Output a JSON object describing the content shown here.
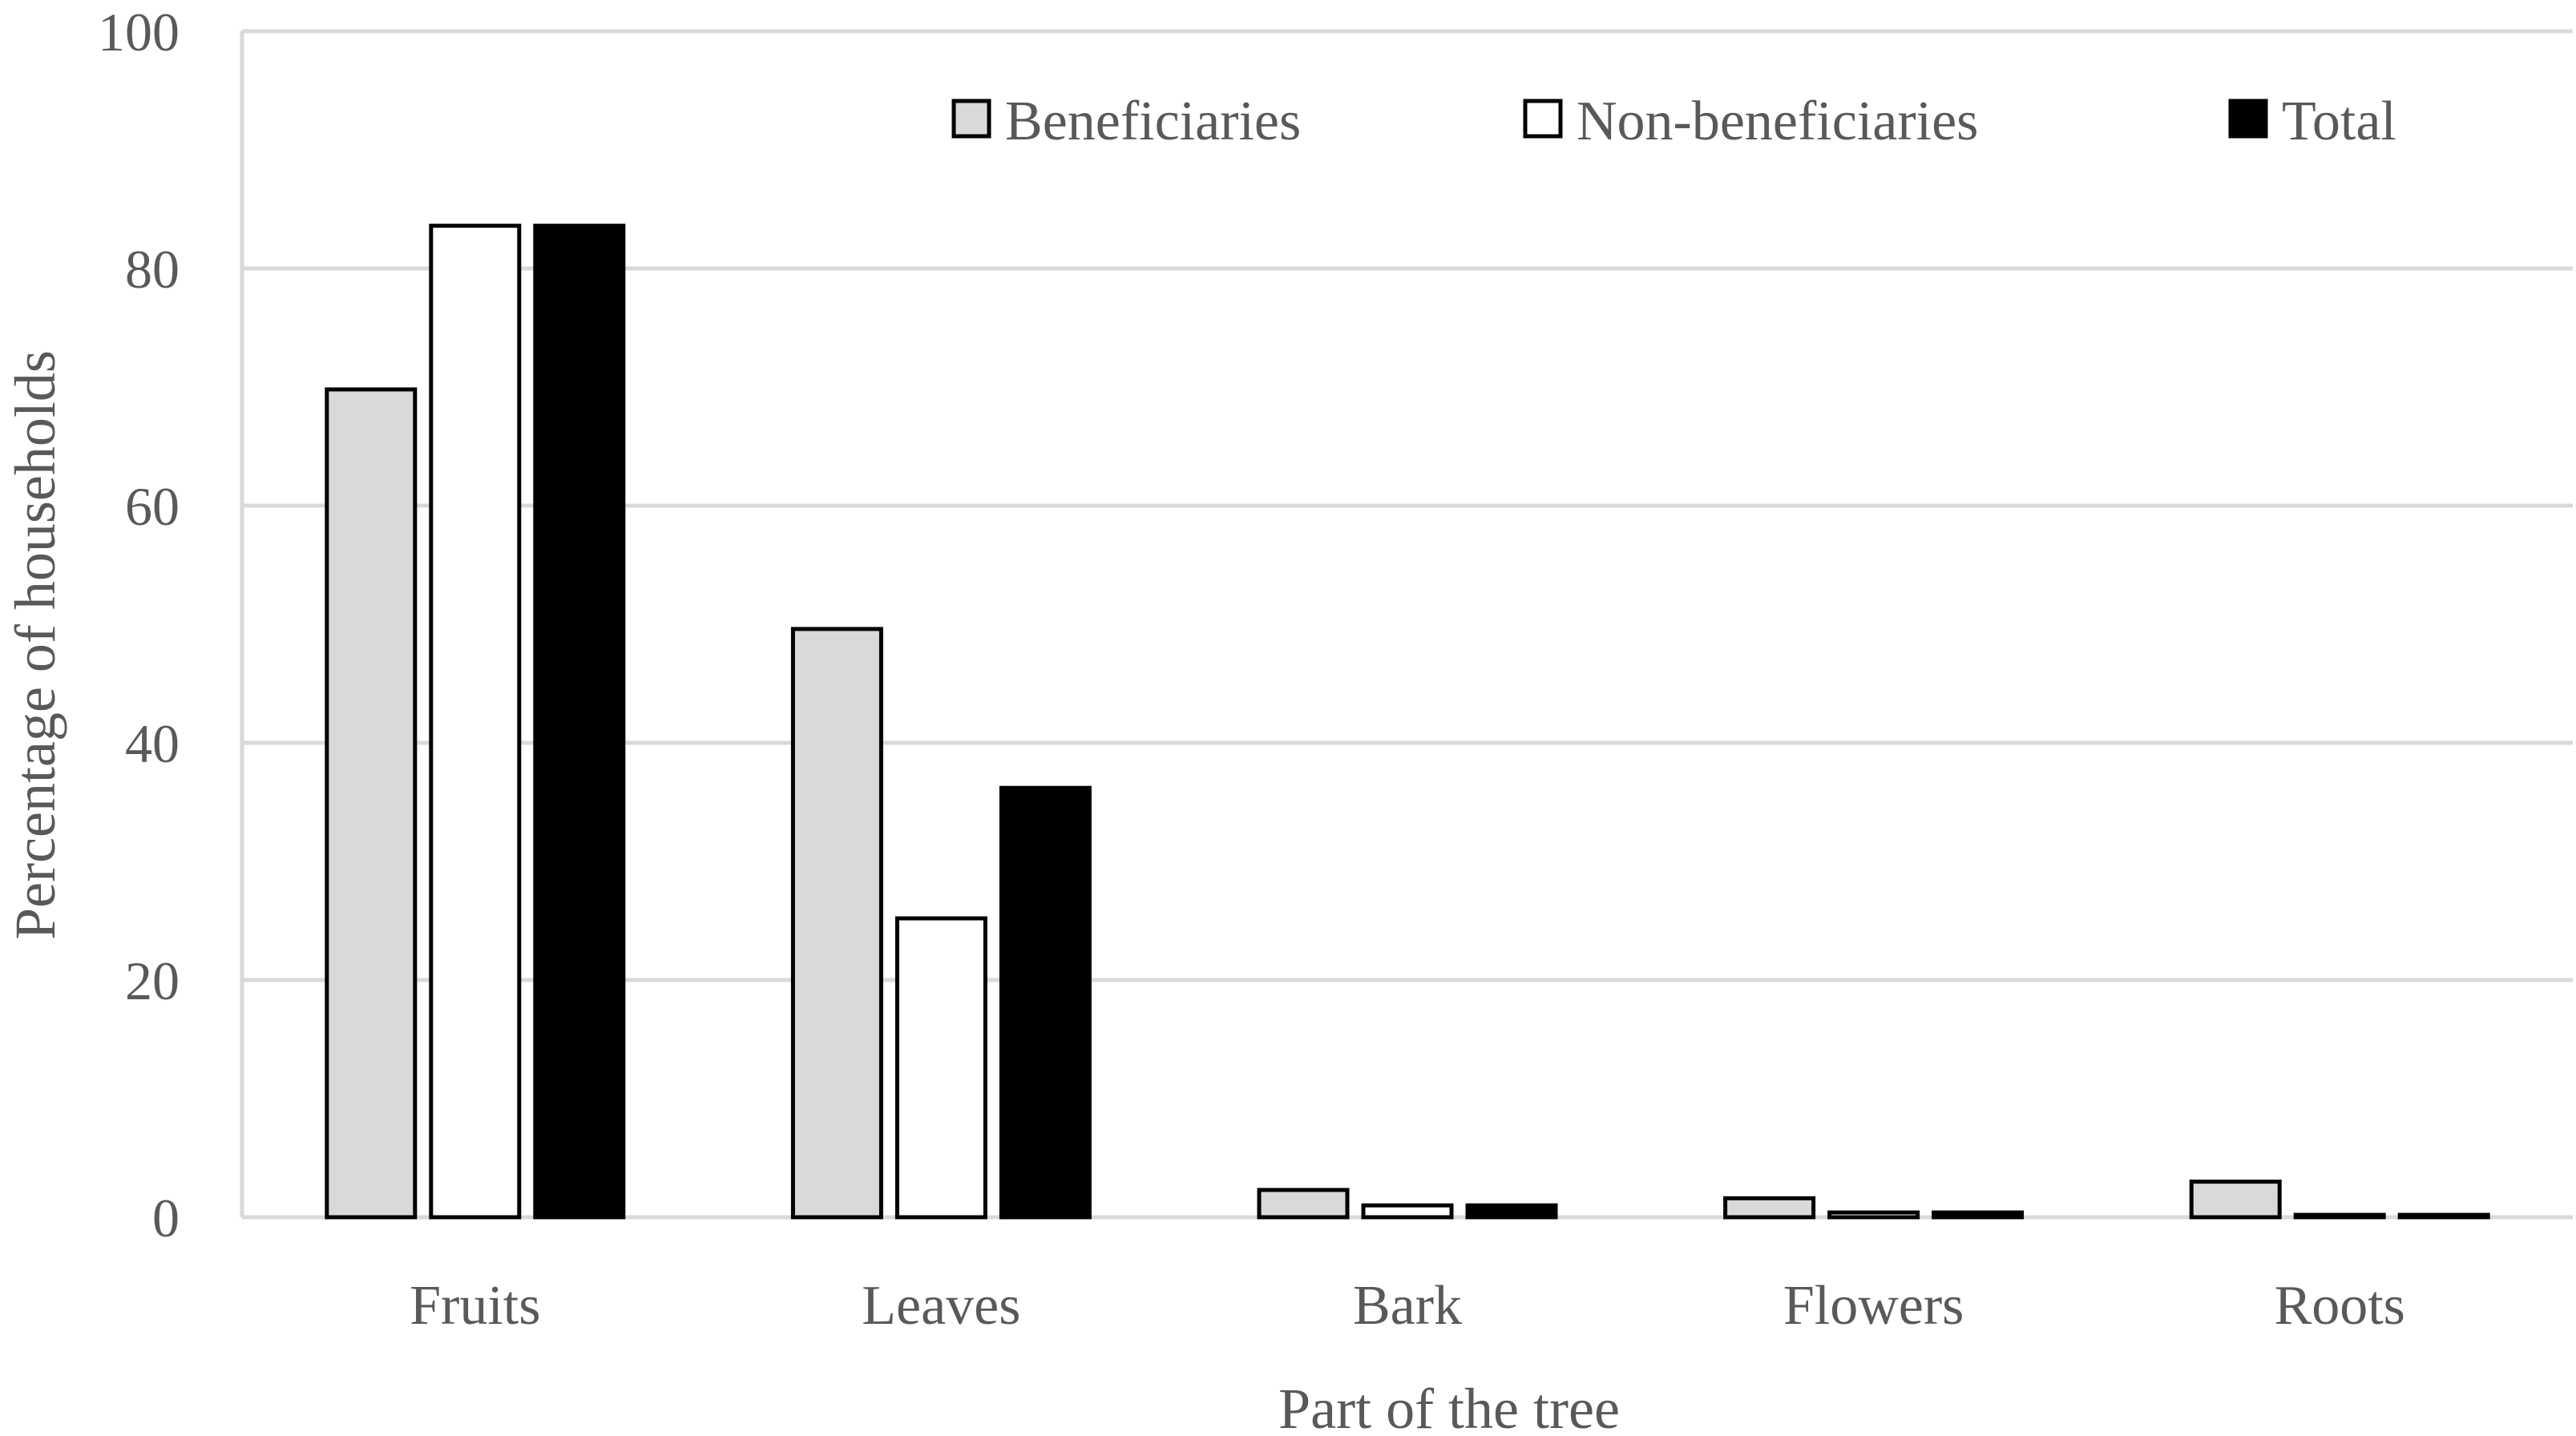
{
  "chart_data": {
    "type": "bar",
    "categories": [
      "Fruits",
      "Leaves",
      "Bark",
      "Flowers",
      "Roots"
    ],
    "series": [
      {
        "name": "Beneficiaries",
        "values": [
          69.8,
          49.6,
          2.3,
          1.6,
          3.0
        ],
        "color": "#d9d9d9"
      },
      {
        "name": "Non-beneficiaries",
        "values": [
          83.6,
          25.2,
          1.0,
          0.4,
          0.2
        ],
        "color": "#ffffff"
      },
      {
        "name": "Total",
        "values": [
          83.6,
          36.2,
          1.0,
          0.4,
          0.2
        ],
        "color": "#000000"
      }
    ],
    "title": "",
    "xlabel": "Part of the tree",
    "ylabel": "Percentage of households",
    "ylim": [
      0,
      100
    ],
    "yticks": [
      0,
      20,
      40,
      60,
      80,
      100
    ],
    "grid": true,
    "legend_position": "top-right"
  }
}
